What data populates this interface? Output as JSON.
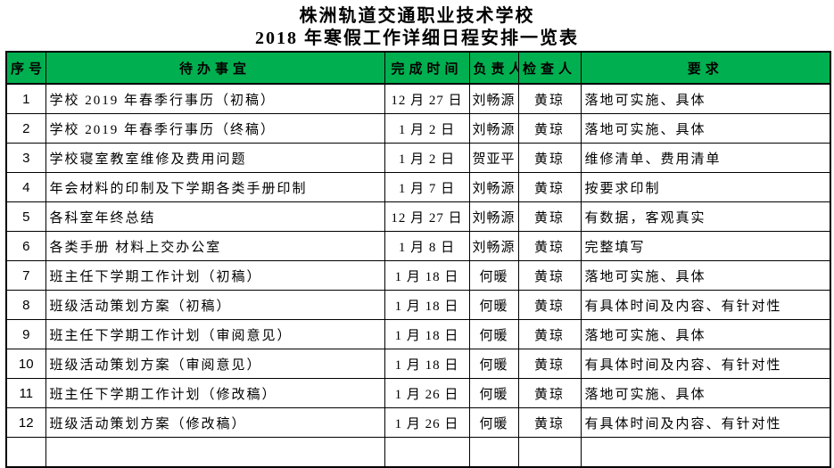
{
  "colors": {
    "header-bg": "#00B050",
    "border-color": "#000000",
    "text-color": "#000000"
  },
  "title": {
    "line1": "株洲轨道交通职业技术学校",
    "line2": "2018 年寒假工作详细日程安排一览表"
  },
  "table": {
    "headers": {
      "seq": "序号",
      "task": "待办事宜",
      "date": "完成时间",
      "owner": "负责人",
      "checker": "检查人",
      "req": "要求"
    },
    "rows": [
      {
        "no": "1",
        "task": "学校 2019 年春季行事历（初稿）",
        "date": "12 月 27 日",
        "owner": "刘畅源",
        "checker": "黄琼",
        "req": "落地可实施、具体"
      },
      {
        "no": "2",
        "task": "学校 2019 年春季行事历（终稿）",
        "date": "1 月 2 日",
        "owner": "刘畅源",
        "checker": "黄琼",
        "req": "落地可实施、具体"
      },
      {
        "no": "3",
        "task": "学校寝室教室维修及费用问题",
        "date": "1 月 2 日",
        "owner": "贺亚平",
        "checker": "黄琼",
        "req": "维修清单、费用清单"
      },
      {
        "no": "4",
        "task": "年会材料的印制及下学期各类手册印制",
        "date": "1 月 7 日",
        "owner": "刘畅源",
        "checker": "黄琼",
        "req": "按要求印制"
      },
      {
        "no": "5",
        "task": "各科室年终总结",
        "date": "12 月 27 日",
        "owner": "刘畅源",
        "checker": "黄琼",
        "req": "有数据，客观真实"
      },
      {
        "no": "6",
        "task": "各类手册 材料上交办公室",
        "date": "1 月 8 日",
        "owner": "刘畅源",
        "checker": "黄琼",
        "req": "完整填写"
      },
      {
        "no": "7",
        "task": "班主任下学期工作计划（初稿）",
        "date": "1 月 18 日",
        "owner": "何暖",
        "checker": "黄琼",
        "req": "落地可实施、具体"
      },
      {
        "no": "8",
        "task": "班级活动策划方案（初稿）",
        "date": "1 月 18 日",
        "owner": "何暖",
        "checker": "黄琼",
        "req": "有具体时间及内容、有针对性"
      },
      {
        "no": "9",
        "task": "班主任下学期工作计划（审阅意见）",
        "date": "1 月 18 日",
        "owner": "何暖",
        "checker": "黄琼",
        "req": "落地可实施、具体"
      },
      {
        "no": "10",
        "task": "班级活动策划方案（审阅意见）",
        "date": "1 月 18 日",
        "owner": "何暖",
        "checker": "黄琼",
        "req": "有具体时间及内容、有针对性"
      },
      {
        "no": "11",
        "task": "班主任下学期工作计划（修改稿）",
        "date": "1 月 26 日",
        "owner": "何暖",
        "checker": "黄琼",
        "req": "落地可实施、具体"
      },
      {
        "no": "12",
        "task": "班级活动策划方案（修改稿）",
        "date": "1 月 26 日",
        "owner": "何暖",
        "checker": "黄琼",
        "req": "有具体时间及内容、有针对性"
      },
      {
        "no": "",
        "task": "",
        "date": "",
        "owner": "",
        "checker": "",
        "req": ""
      }
    ]
  }
}
